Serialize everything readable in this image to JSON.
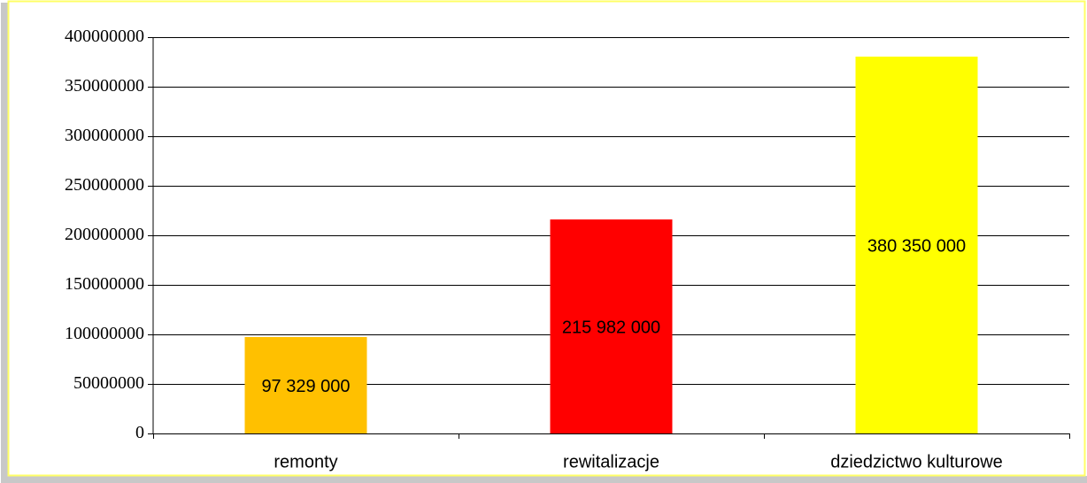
{
  "chart_data": {
    "type": "bar",
    "categories": [
      "remonty",
      "rewitalizacje",
      "dziedzictwo kulturowe"
    ],
    "values": [
      97329000,
      215982000,
      380350000
    ],
    "value_labels": [
      "97 329 000",
      "215 982 000",
      "380 350 000"
    ],
    "colors": [
      "#ffc000",
      "#ff0000",
      "#ffff00"
    ],
    "ylim": [
      0,
      400000000
    ],
    "yticks": [
      0,
      50000000,
      100000000,
      150000000,
      200000000,
      250000000,
      300000000,
      350000000,
      400000000
    ],
    "grid": true
  }
}
